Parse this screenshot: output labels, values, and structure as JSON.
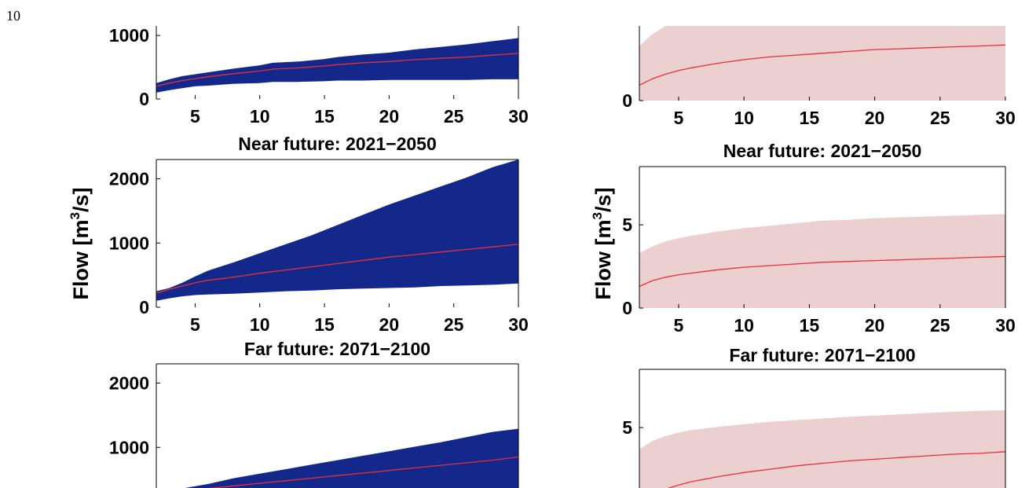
{
  "page": {
    "number": "10"
  },
  "colors": {
    "left_band": "#13288a",
    "right_band": "#eccfcf",
    "median_line": "#e8303a",
    "axis": "#000000"
  },
  "labels": {
    "left_ylabel": "Flow [m",
    "right_ylabel": "Flow [m",
    "ylabel_sup": "3",
    "ylabel_tail": "/s]"
  },
  "chart_data": [
    {
      "id": "left-top",
      "type": "area",
      "title": "",
      "xlim": [
        2,
        30
      ],
      "ylim": [
        0,
        1150
      ],
      "xticks": [
        5,
        10,
        15,
        20,
        25,
        30
      ],
      "yticks": [
        0,
        1000
      ],
      "x": [
        2,
        3,
        4,
        5,
        6,
        8,
        10,
        11,
        13,
        15,
        16,
        18,
        20,
        22,
        24,
        26,
        28,
        30
      ],
      "upper": [
        250,
        310,
        360,
        390,
        420,
        480,
        530,
        570,
        590,
        630,
        660,
        700,
        730,
        780,
        820,
        860,
        910,
        960
      ],
      "median": [
        200,
        250,
        290,
        320,
        350,
        400,
        440,
        470,
        490,
        520,
        540,
        570,
        590,
        620,
        640,
        660,
        690,
        720
      ],
      "lower": [
        100,
        140,
        170,
        200,
        210,
        240,
        250,
        270,
        270,
        280,
        290,
        290,
        300,
        300,
        300,
        300,
        310,
        310
      ]
    },
    {
      "id": "left-mid",
      "type": "area",
      "title": "Near future: 2021−2050",
      "xlim": [
        2,
        30
      ],
      "ylim": [
        0,
        2300
      ],
      "xticks": [
        5,
        10,
        15,
        20,
        25,
        30
      ],
      "yticks": [
        0,
        1000,
        2000
      ],
      "x": [
        2,
        3,
        4,
        5,
        6,
        8,
        10,
        12,
        14,
        16,
        18,
        20,
        22,
        24,
        26,
        28,
        30
      ],
      "upper": [
        250,
        300,
        380,
        480,
        570,
        700,
        840,
        980,
        1120,
        1280,
        1440,
        1600,
        1740,
        1880,
        2020,
        2180,
        2300
      ],
      "median": [
        220,
        280,
        330,
        380,
        420,
        470,
        530,
        580,
        630,
        680,
        730,
        780,
        820,
        860,
        900,
        940,
        980
      ],
      "lower": [
        100,
        140,
        170,
        190,
        200,
        210,
        230,
        250,
        260,
        280,
        290,
        300,
        310,
        330,
        340,
        350,
        370
      ]
    },
    {
      "id": "left-bottom",
      "type": "area",
      "title": "Far future: 2071−2100",
      "xlim": [
        2,
        30
      ],
      "ylim": [
        0,
        2300
      ],
      "xticks": [],
      "yticks": [
        1000,
        2000
      ],
      "x": [
        2,
        4,
        6,
        8,
        10,
        12,
        14,
        16,
        18,
        20,
        22,
        24,
        26,
        28,
        30
      ],
      "upper": [
        300,
        360,
        430,
        520,
        590,
        660,
        730,
        800,
        870,
        940,
        1010,
        1080,
        1160,
        1240,
        1290
      ],
      "median": [
        300,
        330,
        360,
        400,
        440,
        480,
        520,
        560,
        600,
        640,
        680,
        720,
        760,
        800,
        850
      ],
      "lower": [
        0,
        0,
        0,
        0,
        0,
        0,
        0,
        0,
        0,
        0,
        0,
        0,
        0,
        0,
        0
      ]
    },
    {
      "id": "right-top",
      "type": "area",
      "title": "",
      "xlim": [
        2,
        30
      ],
      "ylim": [
        0,
        8.2
      ],
      "xticks": [
        5,
        10,
        15,
        20,
        25,
        30
      ],
      "yticks": [
        0
      ],
      "x": [
        2,
        3,
        4,
        5,
        6,
        8,
        10,
        12,
        14,
        16,
        18,
        20,
        22,
        24,
        26,
        28,
        30
      ],
      "upper": [
        6.0,
        7.3,
        8.2,
        8.2,
        8.2,
        8.2,
        8.2,
        8.2,
        8.2,
        8.2,
        8.2,
        8.2,
        8.2,
        8.2,
        8.2,
        8.2,
        8.2
      ],
      "median": [
        1.7,
        2.4,
        2.9,
        3.3,
        3.6,
        4.1,
        4.5,
        4.8,
        5.0,
        5.2,
        5.4,
        5.6,
        5.7,
        5.8,
        5.9,
        6.0,
        6.1
      ],
      "lower": [
        0,
        0,
        0,
        0,
        0,
        0,
        0,
        0,
        0,
        0,
        0,
        0,
        0,
        0,
        0,
        0,
        0
      ]
    },
    {
      "id": "right-mid",
      "type": "area",
      "title": "Near future: 2021−2050",
      "xlim": [
        2,
        30
      ],
      "ylim": [
        0,
        8.5
      ],
      "xticks": [
        5,
        10,
        15,
        20,
        25,
        30
      ],
      "yticks": [
        0,
        5
      ],
      "x": [
        2,
        3,
        4,
        5,
        6,
        8,
        10,
        12,
        14,
        16,
        18,
        20,
        22,
        24,
        26,
        28,
        30
      ],
      "upper": [
        3.3,
        3.7,
        4.0,
        4.2,
        4.35,
        4.6,
        4.8,
        4.95,
        5.1,
        5.25,
        5.3,
        5.4,
        5.45,
        5.5,
        5.55,
        5.6,
        5.65
      ],
      "median": [
        1.3,
        1.65,
        1.85,
        2.0,
        2.1,
        2.3,
        2.45,
        2.55,
        2.65,
        2.75,
        2.8,
        2.85,
        2.9,
        2.95,
        3.0,
        3.05,
        3.1
      ],
      "lower": [
        0,
        0,
        0,
        0,
        0,
        0,
        0,
        0,
        0,
        0,
        0,
        0,
        0,
        0,
        0,
        0,
        0
      ]
    },
    {
      "id": "right-bottom",
      "type": "area",
      "title": "Far future: 2071−2100",
      "xlim": [
        2,
        30
      ],
      "ylim": [
        0,
        8.5
      ],
      "xticks": [],
      "yticks": [
        5
      ],
      "x": [
        2,
        3,
        4,
        5,
        6,
        8,
        10,
        12,
        14,
        16,
        18,
        20,
        22,
        24,
        26,
        28,
        30
      ],
      "upper": [
        3.7,
        4.2,
        4.5,
        4.7,
        4.85,
        5.05,
        5.2,
        5.35,
        5.45,
        5.55,
        5.65,
        5.72,
        5.8,
        5.88,
        5.95,
        6.0,
        6.05
      ],
      "median": [
        0.5,
        0.95,
        1.3,
        1.55,
        1.75,
        2.05,
        2.3,
        2.5,
        2.7,
        2.85,
        3.0,
        3.1,
        3.2,
        3.3,
        3.4,
        3.45,
        3.55
      ],
      "lower": [
        0,
        0,
        0,
        0,
        0,
        0,
        0,
        0,
        0,
        0,
        0,
        0,
        0,
        0,
        0,
        0,
        0
      ]
    }
  ]
}
